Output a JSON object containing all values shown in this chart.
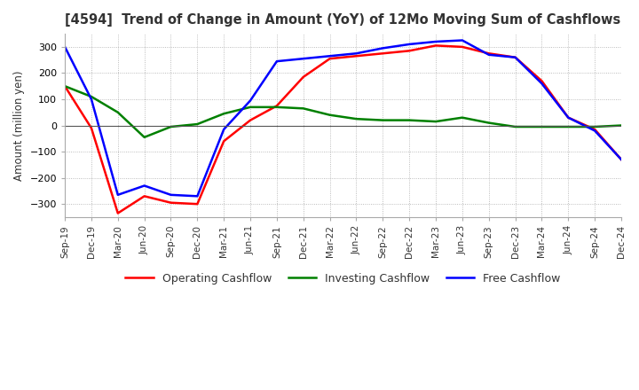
{
  "title": "[4594]  Trend of Change in Amount (YoY) of 12Mo Moving Sum of Cashflows",
  "ylabel": "Amount (million yen)",
  "ylim": [
    -350,
    350
  ],
  "yticks": [
    -300,
    -200,
    -100,
    0,
    100,
    200,
    300
  ],
  "x_labels": [
    "Sep-19",
    "Dec-19",
    "Mar-20",
    "Jun-20",
    "Sep-20",
    "Dec-20",
    "Mar-21",
    "Jun-21",
    "Sep-21",
    "Dec-21",
    "Mar-22",
    "Jun-22",
    "Sep-22",
    "Dec-22",
    "Mar-23",
    "Jun-23",
    "Sep-23",
    "Dec-23",
    "Mar-24",
    "Jun-24",
    "Sep-24",
    "Dec-24"
  ],
  "operating": [
    150,
    -10,
    -335,
    -270,
    -295,
    -300,
    -60,
    20,
    75,
    185,
    255,
    265,
    275,
    285,
    305,
    300,
    275,
    260,
    170,
    30,
    -15,
    -130
  ],
  "investing": [
    150,
    110,
    50,
    -45,
    -5,
    5,
    45,
    70,
    70,
    65,
    40,
    25,
    20,
    20,
    15,
    30,
    10,
    -5,
    -5,
    -5,
    -5,
    0
  ],
  "free": [
    300,
    100,
    -265,
    -230,
    -265,
    -270,
    -15,
    95,
    245,
    255,
    265,
    275,
    295,
    310,
    320,
    325,
    270,
    260,
    160,
    30,
    -20,
    -130
  ],
  "colors": {
    "operating": "#ff0000",
    "investing": "#008000",
    "free": "#0000ff"
  },
  "legend_labels": [
    "Operating Cashflow",
    "Investing Cashflow",
    "Free Cashflow"
  ],
  "background_color": "#ffffff",
  "grid_color": "#aaaaaa"
}
